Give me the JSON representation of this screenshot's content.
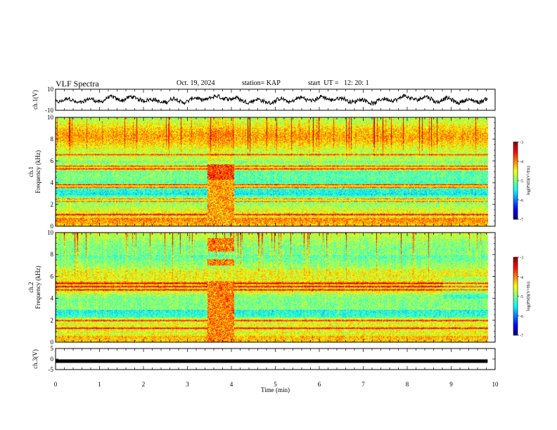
{
  "header": {
    "title": "VLF Spectra",
    "date": "Oct. 19, 2024",
    "station": "station= KAP",
    "start": "start  UT =   12: 20: 1"
  },
  "chart_data": [
    {
      "type": "line",
      "panel": "ch1-waveform",
      "ylabel": "ch.1(V)",
      "ylim": [
        -10,
        10
      ],
      "yticks": [
        "10",
        "-10"
      ],
      "xlim": [
        0,
        10
      ]
    },
    {
      "type": "heatmap",
      "panel": "ch1-spectrogram",
      "ylabel_line1": "ch.1",
      "ylabel_line2": "Frequency (kHz)",
      "ylim": [
        0,
        10
      ],
      "yticks": [
        "0",
        "2",
        "4",
        "6",
        "8",
        "10"
      ],
      "xlim": [
        0,
        10
      ],
      "colorbar": {
        "label": "log(PSD)(V²/Hz)",
        "range": [
          -7,
          -3
        ],
        "ticks": [
          "-3",
          "-4",
          "-5",
          "-6",
          "-7"
        ]
      },
      "strong_bands_khz": [
        1.1,
        2.3,
        2.55,
        3.6,
        3.85,
        5.3,
        5.55,
        6.6
      ],
      "broadband_interval_min": [
        3.45,
        4.05
      ]
    },
    {
      "type": "heatmap",
      "panel": "ch2-spectrogram",
      "ylabel_line1": "ch.2",
      "ylabel_line2": "Frequency (kHz)",
      "ylim": [
        0,
        10
      ],
      "yticks": [
        "0",
        "2",
        "4",
        "6",
        "8",
        "10"
      ],
      "xlim": [
        0,
        10
      ],
      "colorbar": {
        "label": "log(PSD)(V²/Hz)",
        "range": [
          -7,
          -3
        ],
        "ticks": [
          "-3",
          "-4",
          "-5",
          "-6",
          "-7"
        ]
      },
      "strong_bands_khz": [
        1.3,
        2.0,
        4.8,
        5.1,
        5.4
      ],
      "broadband_interval_min": [
        3.45,
        4.05
      ]
    },
    {
      "type": "line",
      "panel": "ch3-waveform",
      "ylabel": "ch.3(V)",
      "ylim": [
        -5,
        5
      ],
      "yticks": [
        "5",
        "0",
        "-5"
      ],
      "level": -1.0,
      "xlim": [
        0,
        10
      ],
      "xlabel": "Time (min)",
      "xticks": [
        "0",
        "1",
        "2",
        "3",
        "4",
        "5",
        "6",
        "7",
        "8",
        "9",
        "10"
      ],
      "data_end_min": 9.83
    }
  ]
}
